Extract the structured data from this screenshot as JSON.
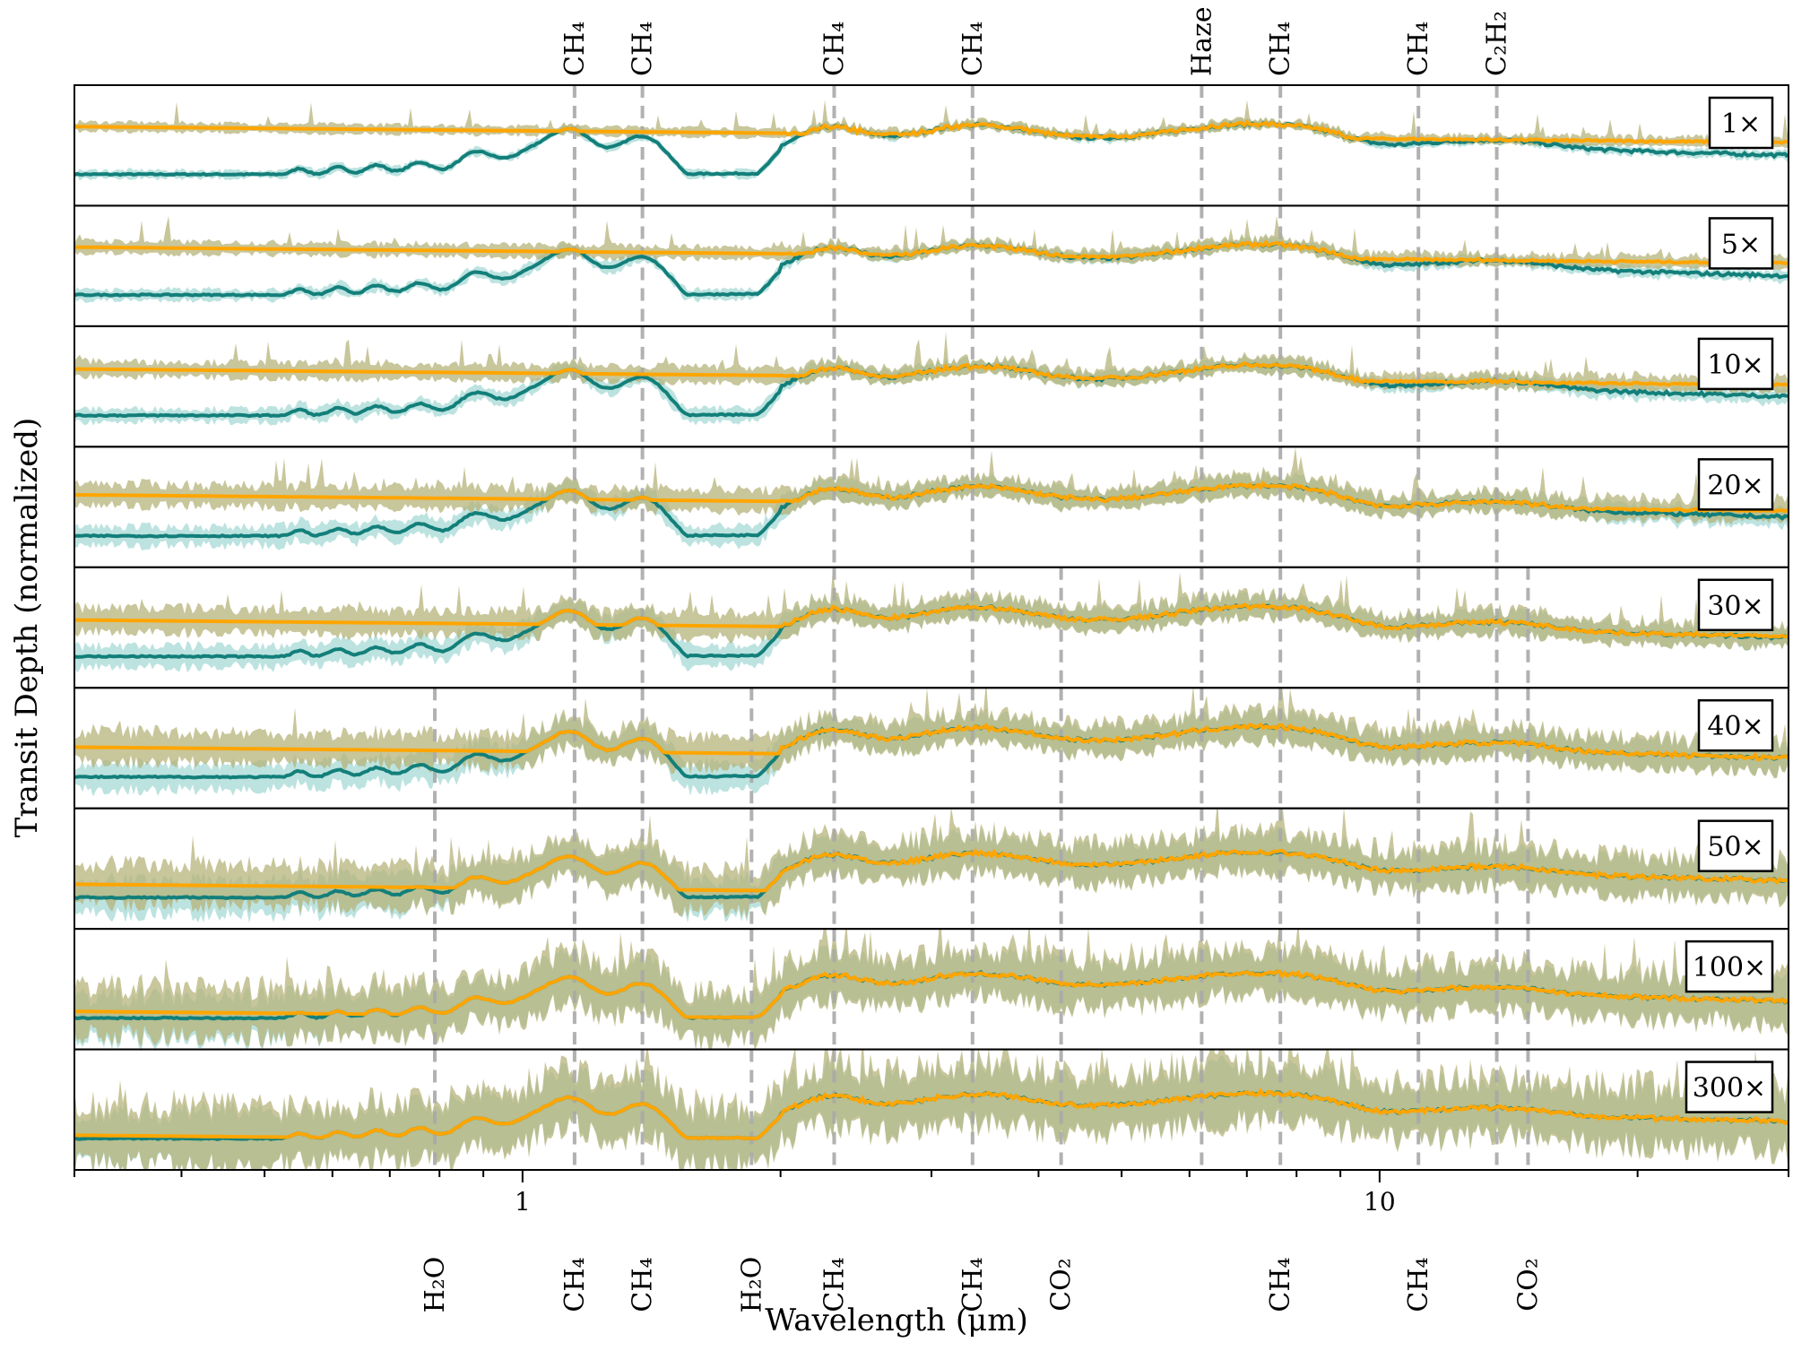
{
  "chart_data": {
    "type": "line",
    "xlabel": "Wavelength (μm)",
    "ylabel": "Transit Depth (normalized)",
    "x_scale": "log",
    "xlim": [
      0.3,
      30
    ],
    "x_ticks": [
      {
        "value": 1,
        "label": "1"
      },
      {
        "value": 10,
        "label": "10"
      }
    ],
    "grid": false,
    "colors": {
      "orange_line": "#FFA500",
      "teal_line": "#137F7A",
      "orange_band": "#B5B37A",
      "teal_band": "#8FD0CC",
      "vline": "#A8A8A8"
    },
    "panels": [
      {
        "label": "1×",
        "features_on": 0
      },
      {
        "label": "5×",
        "features_on": 0
      },
      {
        "label": "10×",
        "features_on": 0
      },
      {
        "label": "20×",
        "features_on": 0
      },
      {
        "label": "30×",
        "features_on": 2
      },
      {
        "label": "40×",
        "features_on": 4
      },
      {
        "label": "50×",
        "features_on": 6
      },
      {
        "label": "100×",
        "features_on": 6
      },
      {
        "label": "300×",
        "features_on": 6
      }
    ],
    "top_features": [
      {
        "wavelength": 1.15,
        "label": "CH₄"
      },
      {
        "wavelength": 1.38,
        "label": "CH₄"
      },
      {
        "wavelength": 2.31,
        "label": "CH₄"
      },
      {
        "wavelength": 3.35,
        "label": "CH₄"
      },
      {
        "wavelength": 6.2,
        "label": "Haze"
      },
      {
        "wavelength": 7.66,
        "label": "CH₄"
      },
      {
        "wavelength": 11.1,
        "label": "CH₄"
      },
      {
        "wavelength": 13.7,
        "label": "C₂H₂"
      }
    ],
    "bottom_features": [
      {
        "wavelength": 0.79,
        "label": "H₂O"
      },
      {
        "wavelength": 1.15,
        "label": "CH₄"
      },
      {
        "wavelength": 1.38,
        "label": "CH₄"
      },
      {
        "wavelength": 1.85,
        "label": "H₂O"
      },
      {
        "wavelength": 2.31,
        "label": "CH₄"
      },
      {
        "wavelength": 3.35,
        "label": "CH₄"
      },
      {
        "wavelength": 4.25,
        "label": "CO₂"
      },
      {
        "wavelength": 7.66,
        "label": "CH₄"
      },
      {
        "wavelength": 11.1,
        "label": "CH₄"
      },
      {
        "wavelength": 14.9,
        "label": "CO₂"
      }
    ]
  }
}
